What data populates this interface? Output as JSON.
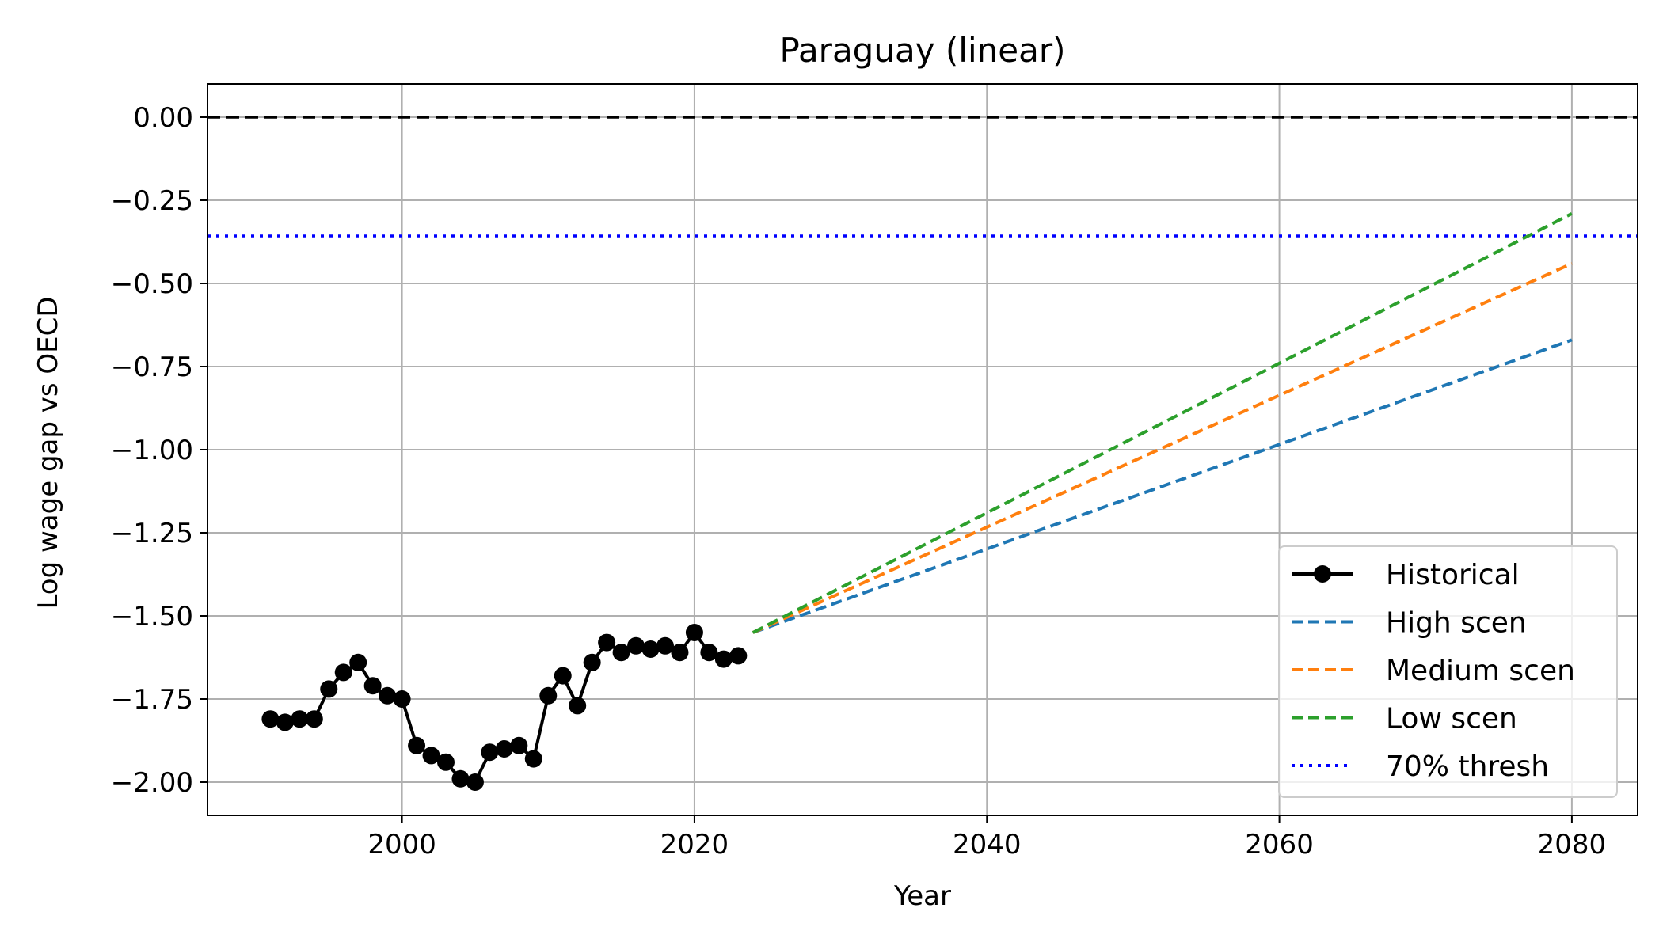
{
  "chart_data": {
    "type": "line",
    "title": "Paraguay (linear)",
    "xlabel": "Year",
    "ylabel": "Log wage gap vs OECD",
    "xlim": [
      1986.7,
      2084.5
    ],
    "ylim": [
      -2.1,
      0.1
    ],
    "xticks": [
      2000,
      2020,
      2040,
      2060,
      2080
    ],
    "yticks": [
      0.0,
      -0.25,
      -0.5,
      -0.75,
      -1.0,
      -1.25,
      -1.5,
      -1.75,
      -2.0
    ],
    "ytick_labels": [
      "0.00",
      "−0.25",
      "−0.50",
      "−0.75",
      "−1.00",
      "−1.25",
      "−1.50",
      "−1.75",
      "−2.00"
    ],
    "grid": true,
    "legend_position": "lower-right",
    "series": [
      {
        "name": "Historical",
        "style": "solid-marker",
        "color": "#000000",
        "x": [
          1991,
          1992,
          1993,
          1994,
          1995,
          1996,
          1997,
          1998,
          1999,
          2000,
          2001,
          2002,
          2003,
          2004,
          2005,
          2006,
          2007,
          2008,
          2009,
          2010,
          2011,
          2012,
          2013,
          2014,
          2015,
          2016,
          2017,
          2018,
          2019,
          2020,
          2021,
          2022,
          2023
        ],
        "y": [
          -1.81,
          -1.82,
          -1.81,
          -1.81,
          -1.72,
          -1.67,
          -1.64,
          -1.71,
          -1.74,
          -1.75,
          -1.89,
          -1.92,
          -1.94,
          -1.99,
          -2.0,
          -1.91,
          -1.9,
          -1.89,
          -1.93,
          -1.74,
          -1.68,
          -1.77,
          -1.64,
          -1.58,
          -1.61,
          -1.59,
          -1.6,
          -1.59,
          -1.61,
          -1.55,
          -1.61,
          -1.63,
          -1.62
        ]
      },
      {
        "name": "High scen",
        "style": "dashed",
        "color": "#1f77b4",
        "x": [
          2024,
          2080
        ],
        "y": [
          -1.55,
          -0.67
        ]
      },
      {
        "name": "Medium scen",
        "style": "dashed",
        "color": "#ff7f0e",
        "x": [
          2024,
          2080
        ],
        "y": [
          -1.55,
          -0.44
        ]
      },
      {
        "name": "Low scen",
        "style": "dashed",
        "color": "#2ca02c",
        "x": [
          2024,
          2080
        ],
        "y": [
          -1.55,
          -0.29
        ]
      }
    ],
    "reference_lines": [
      {
        "name": "",
        "y": 0.0,
        "style": "dashed",
        "color": "#000000"
      },
      {
        "name": "70% thresh",
        "y": -0.357,
        "style": "dotted",
        "color": "#0000ff"
      }
    ],
    "legend": [
      {
        "label": "Historical",
        "style": "solid-marker",
        "color": "#000000"
      },
      {
        "label": "High scen",
        "style": "dashed",
        "color": "#1f77b4"
      },
      {
        "label": "Medium scen",
        "style": "dashed",
        "color": "#ff7f0e"
      },
      {
        "label": "Low scen",
        "style": "dashed",
        "color": "#2ca02c"
      },
      {
        "label": "70% thresh",
        "style": "dotted",
        "color": "#0000ff"
      }
    ]
  }
}
